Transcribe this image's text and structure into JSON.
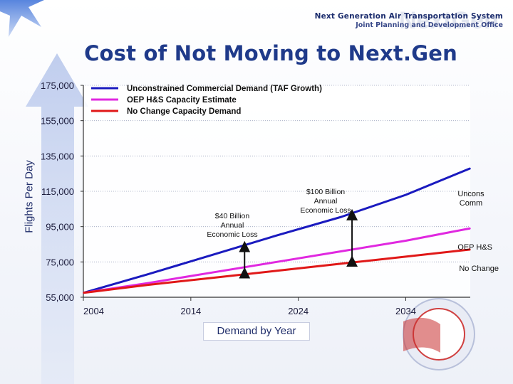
{
  "header": {
    "org_line1": "Next Generation Air Transportation System",
    "org_line2": "Joint Planning and Development Office",
    "watermark": "NextGen"
  },
  "title": "Cost of Not Moving to Next.Gen",
  "chart_data": {
    "type": "line",
    "title": "Cost of Not Moving to Next.Gen",
    "xlabel": "Demand by Year",
    "ylabel": "Flights Per Day",
    "xlim": [
      2004,
      2040
    ],
    "ylim": [
      55000,
      175000
    ],
    "x_ticks": [
      "2004",
      "2014",
      "2024",
      "2034"
    ],
    "y_ticks": [
      "175,000",
      "155,000",
      "135,000",
      "115,000",
      "95,000",
      "75,000",
      "55,000"
    ],
    "grid": true,
    "legend_position": "top-left",
    "x": [
      2004,
      2010,
      2016,
      2022,
      2028,
      2034,
      2040
    ],
    "series": [
      {
        "name": "Unconstrained Commercial Demand (TAF Growth)",
        "color": "#1a1abf",
        "values": [
          57500,
          68000,
          79000,
          90000,
          100500,
          113000,
          128000
        ]
      },
      {
        "name": "OEP H&S Capacity Estimate",
        "color": "#e028e0",
        "values": [
          57500,
          63000,
          69000,
          75000,
          81000,
          87000,
          94000
        ]
      },
      {
        "name": "No Change Capacity Demand",
        "color": "#e01818",
        "values": [
          57500,
          62000,
          66000,
          70000,
          74000,
          78000,
          82000
        ]
      }
    ],
    "annotations": [
      {
        "text_lines": [
          "$40 Billion",
          "Annual",
          "Economic Loss"
        ],
        "at_x": 2019
      },
      {
        "text_lines": [
          "$100 Billion",
          "Annual",
          "Economic Loss"
        ],
        "at_x": 2029
      }
    ],
    "end_labels": [
      {
        "series": 0,
        "text_lines": [
          "Uncons",
          "Comm"
        ]
      },
      {
        "series": 1,
        "text_lines": [
          "OEP H&S"
        ]
      },
      {
        "series": 2,
        "text_lines": [
          "No Change"
        ]
      }
    ],
    "loss_arrows": [
      {
        "x": 2019,
        "from_series": 2,
        "to_series": 0
      },
      {
        "x": 2029,
        "from_series": 2,
        "to_series": 0
      }
    ]
  }
}
